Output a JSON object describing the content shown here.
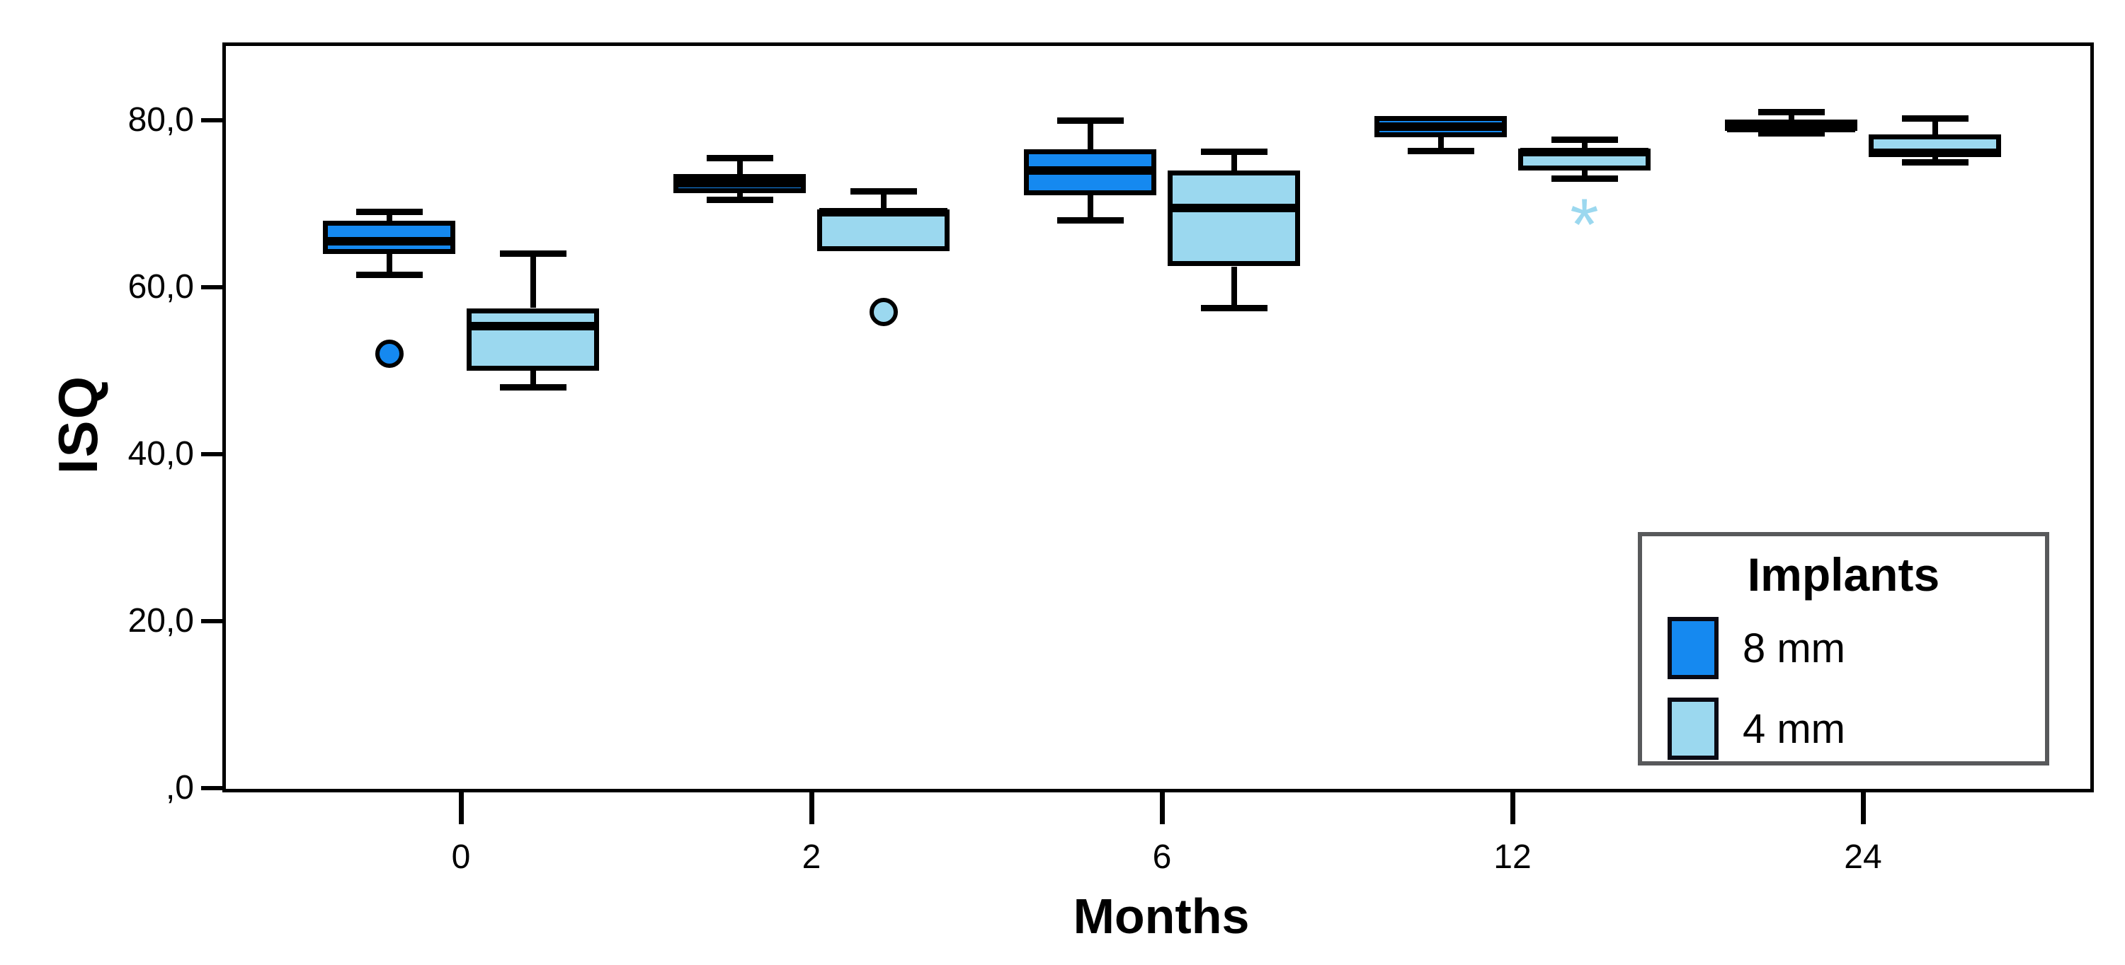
{
  "page": {
    "background": "#ffffff"
  },
  "chart_data": {
    "type": "boxplot",
    "title": "",
    "xlabel": "Months",
    "ylabel": "ISQ",
    "categories": [
      "0",
      "2",
      "6",
      "12",
      "24"
    ],
    "y_axis": {
      "tick_labels": [
        "80,0",
        "60,0",
        "40,0",
        "20,0",
        ",0"
      ],
      "tick_values": [
        80,
        60,
        40,
        20,
        0
      ],
      "range": [
        0,
        89
      ],
      "decimal_style": "comma",
      "grid": false
    },
    "legend": {
      "title": "Implants",
      "position": "bottom-right",
      "entries": [
        {
          "label": "8 mm",
          "color": "#1589f0"
        },
        {
          "label": "4 mm",
          "color": "#9bd8ef"
        }
      ]
    },
    "series": [
      {
        "name": "8 mm",
        "color": "#1589f0",
        "boxes": [
          {
            "category": "0",
            "whisker_low": 61.5,
            "q1": 64.0,
            "median": 65.5,
            "q3": 68.0,
            "whisker_high": 69.0,
            "outliers": [
              {
                "shape": "circle",
                "value": 52.0
              }
            ]
          },
          {
            "category": "2",
            "whisker_low": 70.5,
            "q1": 71.3,
            "median": 72.5,
            "q3": 73.6,
            "whisker_high": 75.5,
            "outliers": []
          },
          {
            "category": "6",
            "whisker_low": 68.0,
            "q1": 71.0,
            "median": 74.0,
            "q3": 76.5,
            "whisker_high": 80.0,
            "outliers": []
          },
          {
            "category": "12",
            "whisker_low": 76.3,
            "q1": 78.0,
            "median": 79.2,
            "q3": 80.5,
            "whisker_high": 80.5,
            "outliers": []
          },
          {
            "category": "24",
            "whisker_low": 78.4,
            "q1": 78.7,
            "median": 79.1,
            "q3": 80.1,
            "whisker_high": 81.0,
            "outliers": []
          }
        ]
      },
      {
        "name": "4 mm",
        "color": "#9bd8ef",
        "boxes": [
          {
            "category": "0",
            "whisker_low": 48.0,
            "q1": 50.0,
            "median": 55.3,
            "q3": 57.5,
            "whisker_high": 64.0,
            "outliers": []
          },
          {
            "category": "2",
            "whisker_low": 64.3,
            "q1": 64.3,
            "median": 69.0,
            "q3": 69.3,
            "whisker_high": 71.5,
            "outliers": [
              {
                "shape": "circle",
                "value": 57.0
              }
            ]
          },
          {
            "category": "6",
            "whisker_low": 57.5,
            "q1": 62.5,
            "median": 69.5,
            "q3": 74.0,
            "whisker_high": 76.2,
            "outliers": []
          },
          {
            "category": "12",
            "whisker_low": 73.0,
            "q1": 74.0,
            "median": 76.2,
            "q3": 76.6,
            "whisker_high": 77.7,
            "outliers": [
              {
                "shape": "star",
                "value": 67.5
              }
            ]
          },
          {
            "category": "24",
            "whisker_low": 75.0,
            "q1": 75.6,
            "median": 76.1,
            "q3": 78.3,
            "whisker_high": 80.2,
            "outliers": []
          }
        ]
      }
    ]
  }
}
